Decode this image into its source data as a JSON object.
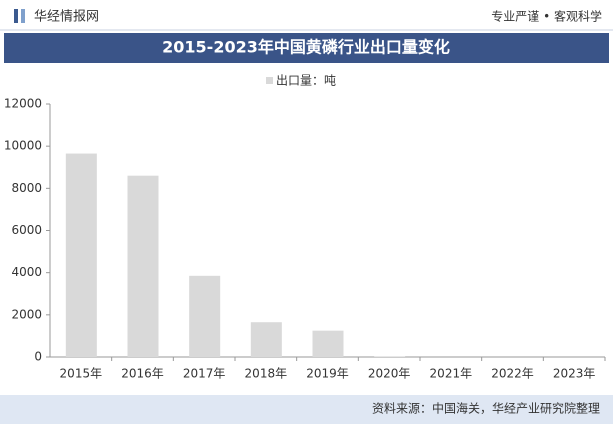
{
  "header": {
    "brand": "华经情报网",
    "slogan": "专业严谨 • 客观科学"
  },
  "chart_data": {
    "type": "bar",
    "title": "2015-2023年中国黄磷行业出口量变化",
    "categories": [
      "2015年",
      "2016年",
      "2017年",
      "2018年",
      "2019年",
      "2020年",
      "2021年",
      "2022年",
      "2023年"
    ],
    "series": [
      {
        "name": "出口量：吨",
        "color": "#d9d9d9",
        "values": [
          9650,
          8600,
          3850,
          1650,
          1250,
          30,
          0,
          0,
          0
        ]
      }
    ],
    "ylim": [
      0,
      12000
    ],
    "yticks": [
      0,
      2000,
      4000,
      6000,
      8000,
      10000,
      12000
    ],
    "grid": false
  },
  "footer": {
    "source": "资料来源：中国海关，华经产业研究院整理"
  }
}
